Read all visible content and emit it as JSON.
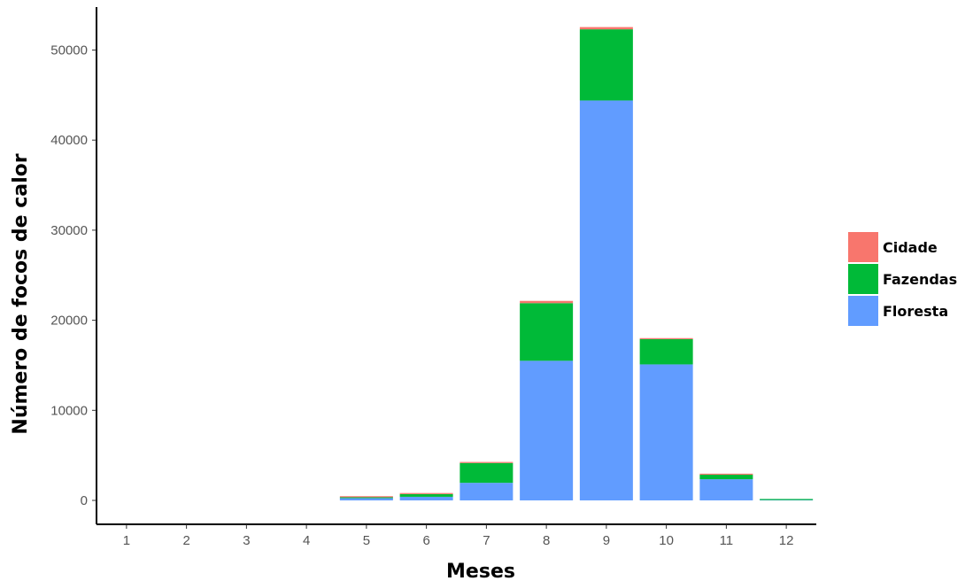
{
  "chart_data": {
    "type": "bar",
    "stacked": true,
    "xlabel": "Meses",
    "ylabel": "Número de focos de calor",
    "categories": [
      "1",
      "2",
      "3",
      "4",
      "5",
      "6",
      "7",
      "8",
      "9",
      "10",
      "11",
      "12"
    ],
    "yticks": [
      "0",
      "10000",
      "20000",
      "30000",
      "40000",
      "50000"
    ],
    "ylim": [
      0,
      53000
    ],
    "grid": false,
    "legend_position": "right",
    "series": [
      {
        "name": "Floresta",
        "color": "#619CFF",
        "values": [
          0,
          0,
          0,
          0,
          250,
          400,
          1950,
          15500,
          44400,
          15100,
          2350,
          40
        ]
      },
      {
        "name": "Fazendas",
        "color": "#00BA38",
        "values": [
          0,
          0,
          0,
          0,
          100,
          300,
          2200,
          6400,
          7900,
          2800,
          500,
          80
        ]
      },
      {
        "name": "Cidade",
        "color": "#F8766D",
        "values": [
          0,
          0,
          0,
          0,
          10,
          20,
          40,
          250,
          250,
          40,
          10,
          0
        ]
      }
    ],
    "legend_order": [
      "Cidade",
      "Fazendas",
      "Floresta"
    ]
  }
}
